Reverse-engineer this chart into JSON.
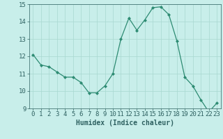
{
  "x": [
    0,
    1,
    2,
    3,
    4,
    5,
    6,
    7,
    8,
    9,
    10,
    11,
    12,
    13,
    14,
    15,
    16,
    17,
    18,
    19,
    20,
    21,
    22,
    23
  ],
  "y": [
    12.1,
    11.5,
    11.4,
    11.1,
    10.8,
    10.8,
    10.5,
    9.9,
    9.9,
    10.3,
    11.0,
    13.0,
    14.2,
    13.5,
    14.1,
    14.8,
    14.85,
    14.4,
    12.9,
    10.8,
    10.3,
    9.5,
    8.8,
    9.3
  ],
  "line_color": "#2d8b72",
  "marker": "D",
  "marker_size": 2.0,
  "xlabel": "Humidex (Indice chaleur)",
  "xlabel_fontsize": 7,
  "xlabel_fontweight": "bold",
  "bg_color": "#c8eeea",
  "grid_color": "#a8d8d0",
  "tick_color": "#2d6060",
  "xlim": [
    -0.5,
    23.5
  ],
  "ylim": [
    9,
    15
  ],
  "yticks": [
    9,
    10,
    11,
    12,
    13,
    14,
    15
  ],
  "xticks": [
    0,
    1,
    2,
    3,
    4,
    5,
    6,
    7,
    8,
    9,
    10,
    11,
    12,
    13,
    14,
    15,
    16,
    17,
    18,
    19,
    20,
    21,
    22,
    23
  ],
  "tick_fontsize": 6.5
}
